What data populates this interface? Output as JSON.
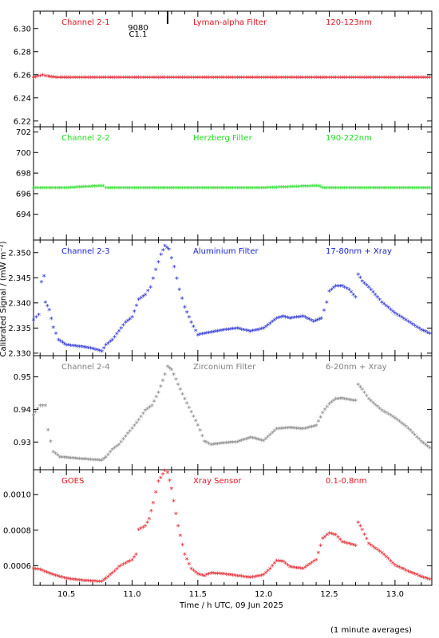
{
  "figure": {
    "ylabel": "Calibrated Signal / (mW m⁻²)",
    "xlabel": "Time / h UTC, 09 Jun 2025",
    "footnote": "(1 minute averages)",
    "x_ticks": [
      "10.5",
      "11.0",
      "11.5",
      "12.0",
      "12.5",
      "13.0"
    ],
    "marker": {
      "label_a": "9080",
      "label_b": "C1.1",
      "x": 11.27
    }
  },
  "chart_data": [
    {
      "type": "scatter",
      "panel": "Channel 2-1",
      "labels": [
        "Channel 2-1",
        "Lyman-alpha Filter",
        "120-123nm"
      ],
      "color": "#e0141e",
      "xlim": [
        10.25,
        13.28
      ],
      "ylim": [
        6.215,
        6.315
      ],
      "yticks": [
        6.22,
        6.24,
        6.26,
        6.28,
        6.3
      ],
      "ytick_labels": [
        "6.22",
        "6.24",
        "6.26",
        "6.28",
        "6.30"
      ],
      "series": [
        {
          "x": [
            10.25,
            10.28,
            10.32,
            10.36,
            10.42,
            10.5,
            11.0,
            11.5,
            12.0,
            12.5,
            13.0,
            13.28
          ],
          "y": [
            6.257,
            6.258,
            6.259,
            6.258,
            6.257,
            6.257,
            6.257,
            6.257,
            6.257,
            6.257,
            6.257,
            6.257
          ]
        }
      ]
    },
    {
      "type": "scatter",
      "panel": "Channel 2-2",
      "labels": [
        "Channel 2-2",
        "Herzberg Filter",
        "190-222nm"
      ],
      "color": "#22dd22",
      "xlim": [
        10.25,
        13.28
      ],
      "ylim": [
        691.5,
        702.5
      ],
      "yticks": [
        694,
        696,
        698,
        700,
        702
      ],
      "ytick_labels": [
        "694",
        "696",
        "698",
        "700",
        "702"
      ],
      "series": [
        {
          "x": [
            10.25,
            10.5,
            10.78,
            10.8,
            11.0,
            11.5,
            12.0,
            12.42,
            12.45,
            13.0,
            13.28
          ],
          "y": [
            696.5,
            696.5,
            696.7,
            696.5,
            696.5,
            696.5,
            696.5,
            696.7,
            696.5,
            696.5,
            696.5
          ]
        }
      ]
    },
    {
      "type": "scatter",
      "panel": "Channel 2-3",
      "labels": [
        "Channel 2-3",
        "Aluminium Filter",
        "17-80nm + Xray"
      ],
      "color": "#1a22cc",
      "xlim": [
        10.25,
        13.28
      ],
      "ylim": [
        2.3295,
        2.3525
      ],
      "yticks": [
        2.33,
        2.335,
        2.34,
        2.345,
        2.35
      ],
      "ytick_labels": [
        "2.330",
        "2.335",
        "2.340",
        "2.345",
        "2.350"
      ],
      "series": [
        {
          "x": [
            10.25,
            10.29,
            10.31,
            10.33,
            10.34,
            10.37,
            10.4,
            10.44,
            10.5,
            10.6,
            10.7,
            10.77,
            10.8,
            10.85,
            10.95,
            11.0,
            11.05,
            11.1,
            11.14,
            11.18,
            11.22,
            11.25,
            11.28,
            11.32,
            11.36,
            11.4,
            11.45,
            11.5,
            11.55,
            11.6,
            11.7,
            11.8,
            11.9,
            12.0,
            12.1,
            12.15,
            12.2,
            12.3,
            12.38,
            12.44,
            12.48,
            12.5,
            12.55,
            12.6,
            12.65,
            12.7,
            12.72,
            12.75,
            12.8,
            12.9,
            13.0,
            13.1,
            13.2,
            13.28
          ],
          "y": [
            2.3365,
            2.3375,
            2.344,
            2.3452,
            2.34,
            2.3385,
            2.335,
            2.3325,
            2.3315,
            2.3312,
            2.3308,
            2.3302,
            2.3315,
            2.3325,
            2.336,
            2.337,
            2.3405,
            2.3415,
            2.343,
            2.3465,
            2.3495,
            2.3512,
            2.3505,
            2.347,
            2.3425,
            2.339,
            2.336,
            2.3335,
            2.3338,
            2.334,
            2.3345,
            2.3348,
            2.3342,
            2.3348,
            2.3368,
            2.3372,
            2.3368,
            2.3372,
            2.3362,
            2.3368,
            2.34,
            2.3422,
            2.3432,
            2.3432,
            2.3425,
            2.341,
            2.3455,
            2.3442,
            2.343,
            2.34,
            2.3378,
            2.3362,
            2.3345,
            2.3336
          ]
        }
      ]
    },
    {
      "type": "scatter",
      "panel": "Channel 2-4",
      "labels": [
        "Channel 2-4",
        "Zirconium Filter",
        "6-20nm + Xray"
      ],
      "color": "#808080",
      "xlim": [
        10.25,
        13.28
      ],
      "ylim": [
        0.9215,
        0.9565
      ],
      "yticks": [
        0.93,
        0.94,
        0.95
      ],
      "ytick_labels": [
        "0.93",
        "0.94",
        "0.95"
      ],
      "series": [
        {
          "x": [
            10.25,
            10.28,
            10.3,
            10.34,
            10.36,
            10.38,
            10.4,
            10.45,
            10.55,
            10.65,
            10.77,
            10.8,
            10.85,
            10.9,
            10.95,
            11.0,
            11.05,
            11.1,
            11.15,
            11.2,
            11.25,
            11.27,
            11.3,
            11.35,
            11.4,
            11.45,
            11.5,
            11.55,
            11.6,
            11.7,
            11.8,
            11.9,
            12.0,
            12.1,
            12.2,
            12.3,
            12.4,
            12.45,
            12.5,
            12.55,
            12.6,
            12.65,
            12.7,
            12.72,
            12.75,
            12.8,
            12.9,
            13.0,
            13.1,
            13.2,
            13.28
          ],
          "y": [
            0.938,
            0.94,
            0.941,
            0.941,
            0.9335,
            0.93,
            0.9268,
            0.9252,
            0.9248,
            0.9245,
            0.9242,
            0.9252,
            0.9275,
            0.929,
            0.9315,
            0.934,
            0.9365,
            0.9395,
            0.941,
            0.945,
            0.9505,
            0.953,
            0.952,
            0.9475,
            0.943,
            0.939,
            0.935,
            0.93,
            0.929,
            0.9295,
            0.9298,
            0.9312,
            0.9302,
            0.9338,
            0.9342,
            0.9338,
            0.9348,
            0.9388,
            0.9415,
            0.943,
            0.9432,
            0.9428,
            0.9425,
            0.9475,
            0.946,
            0.943,
            0.9395,
            0.9372,
            0.934,
            0.93,
            0.9275
          ]
        }
      ]
    },
    {
      "type": "scatter",
      "panel": "GOES",
      "labels": [
        "GOES",
        "Xray Sensor",
        "0.1-0.8nm"
      ],
      "color": "#e0141e",
      "xlim": [
        10.25,
        13.28
      ],
      "ylim": [
        0.00049,
        0.00114
      ],
      "yticks": [
        0.0006,
        0.0008,
        0.001
      ],
      "ytick_labels": [
        "0.0006",
        "0.0008",
        "0.0010"
      ],
      "series": [
        {
          "x": [
            10.25,
            10.3,
            10.35,
            10.4,
            10.5,
            10.6,
            10.7,
            10.77,
            10.8,
            10.85,
            10.9,
            10.95,
            11.0,
            11.03,
            11.05,
            11.1,
            11.13,
            11.16,
            11.2,
            11.25,
            11.27,
            11.3,
            11.35,
            11.4,
            11.45,
            11.5,
            11.55,
            11.6,
            11.7,
            11.8,
            11.9,
            12.0,
            12.05,
            12.1,
            12.15,
            12.2,
            12.3,
            12.4,
            12.45,
            12.5,
            12.55,
            12.6,
            12.65,
            12.7,
            12.72,
            12.75,
            12.8,
            12.9,
            13.0,
            13.1,
            13.2,
            13.28
          ],
          "y": [
            0.00058,
            0.000575,
            0.00056,
            0.000545,
            0.000525,
            0.000515,
            0.00051,
            0.000508,
            0.000525,
            0.000555,
            0.00059,
            0.00061,
            0.00063,
            0.00066,
            0.0008,
            0.00082,
            0.00086,
            0.00095,
            0.00107,
            0.00113,
            0.00112,
            0.00103,
            0.00082,
            0.00066,
            0.00058,
            0.00055,
            0.00054,
            0.000555,
            0.00055,
            0.00054,
            0.00053,
            0.000545,
            0.00058,
            0.000625,
            0.00062,
            0.00059,
            0.00058,
            0.00063,
            0.00075,
            0.00078,
            0.00077,
            0.00073,
            0.00072,
            0.00071,
            0.00084,
            0.0008,
            0.00072,
            0.00067,
            0.0006,
            0.000565,
            0.000535,
            0.000515
          ]
        }
      ]
    }
  ]
}
